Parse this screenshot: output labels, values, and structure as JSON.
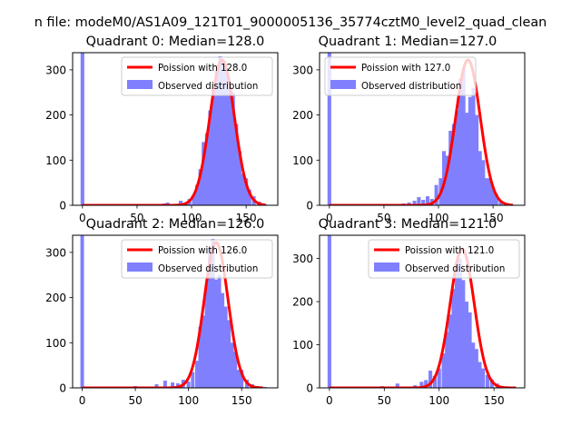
{
  "figure": {
    "suptitle": "n file: modeM0/AS1A09_121T01_9000005136_35774cztM0_level2_quad_clean"
  },
  "colors": {
    "observed": "#8080ff",
    "poisson": "#ff0000",
    "axis": "#000000",
    "background": "#ffffff"
  },
  "chart_data": [
    {
      "type": "bar",
      "title": "Quadrant 0: Median=128.0",
      "xlim": [
        -9,
        179
      ],
      "ylim": [
        0,
        338
      ],
      "xticks": [
        0,
        50,
        100,
        150
      ],
      "yticks": [
        0,
        100,
        200,
        300
      ],
      "median": 128,
      "legend": {
        "placement": "upper right",
        "entries": [
          "Poission with 128.0",
          "Observed distribution"
        ]
      },
      "series": [
        {
          "name": "Observed distribution",
          "kind": "histogram",
          "bin_width": 3.4,
          "bins": [
            [
              0,
              340
            ],
            [
              60,
              2
            ],
            [
              75,
              4
            ],
            [
              78,
              6
            ],
            [
              85,
              3
            ],
            [
              90,
              10
            ],
            [
              95,
              6
            ],
            [
              98,
              14
            ],
            [
              102,
              22
            ],
            [
              105,
              45
            ],
            [
              108,
              80
            ],
            [
              111,
              140
            ],
            [
              114,
              160
            ],
            [
              117,
              210
            ],
            [
              120,
              260
            ],
            [
              123,
              300
            ],
            [
              126,
              330
            ],
            [
              129,
              320
            ],
            [
              132,
              300
            ],
            [
              135,
              260
            ],
            [
              138,
              250
            ],
            [
              141,
              180
            ],
            [
              144,
              120
            ],
            [
              147,
              70
            ],
            [
              150,
              60
            ],
            [
              153,
              35
            ],
            [
              157,
              20
            ],
            [
              162,
              8
            ],
            [
              167,
              3
            ]
          ]
        },
        {
          "name": "Poission with 128.0",
          "kind": "curve",
          "mean": 128,
          "peak": 322,
          "x_range": [
            0,
            168
          ]
        }
      ]
    },
    {
      "type": "bar",
      "title": "Quadrant 1: Median=127.0",
      "xlim": [
        -9,
        179
      ],
      "ylim": [
        0,
        338
      ],
      "xticks": [
        0,
        50,
        100,
        150
      ],
      "yticks": [
        0,
        100,
        200,
        300
      ],
      "median": 127,
      "legend": {
        "placement": "upper left",
        "entries": [
          "Poission with 127.0",
          "Observed distribution"
        ]
      },
      "series": [
        {
          "name": "Observed distribution",
          "kind": "histogram",
          "bin_width": 3.4,
          "bins": [
            [
              0,
              340
            ],
            [
              68,
              4
            ],
            [
              73,
              6
            ],
            [
              78,
              10
            ],
            [
              82,
              18
            ],
            [
              86,
              12
            ],
            [
              90,
              20
            ],
            [
              94,
              14
            ],
            [
              98,
              45
            ],
            [
              102,
              60
            ],
            [
              105,
              120
            ],
            [
              108,
              110
            ],
            [
              111,
              165
            ],
            [
              114,
              180
            ],
            [
              117,
              210
            ],
            [
              120,
              280
            ],
            [
              123,
              300
            ],
            [
              126,
              205
            ],
            [
              129,
              240
            ],
            [
              132,
              260
            ],
            [
              135,
              200
            ],
            [
              138,
              120
            ],
            [
              141,
              100
            ],
            [
              144,
              60
            ],
            [
              147,
              60
            ],
            [
              150,
              40
            ],
            [
              153,
              25
            ],
            [
              157,
              10
            ],
            [
              162,
              5
            ],
            [
              167,
              2
            ]
          ]
        },
        {
          "name": "Poission with 127.0",
          "kind": "curve",
          "mean": 127,
          "peak": 322,
          "x_range": [
            0,
            168
          ]
        }
      ]
    },
    {
      "type": "bar",
      "title": "Quadrant 2: Median=126.0",
      "xlim": [
        -9,
        184
      ],
      "ylim": [
        0,
        338
      ],
      "xticks": [
        0,
        50,
        100,
        150
      ],
      "yticks": [
        0,
        100,
        200,
        300
      ],
      "median": 126,
      "legend": {
        "placement": "upper right",
        "entries": [
          "Poission with 126.0",
          "Observed distribution"
        ]
      },
      "series": [
        {
          "name": "Observed distribution",
          "kind": "histogram",
          "bin_width": 3.4,
          "bins": [
            [
              0,
              340
            ],
            [
              45,
              3
            ],
            [
              50,
              4
            ],
            [
              70,
              8
            ],
            [
              78,
              16
            ],
            [
              85,
              12
            ],
            [
              90,
              10
            ],
            [
              95,
              18
            ],
            [
              100,
              14
            ],
            [
              104,
              35
            ],
            [
              108,
              60
            ],
            [
              111,
              135
            ],
            [
              114,
              160
            ],
            [
              117,
              230
            ],
            [
              120,
              310
            ],
            [
              123,
              330
            ],
            [
              126,
              240
            ],
            [
              129,
              250
            ],
            [
              132,
              210
            ],
            [
              135,
              180
            ],
            [
              138,
              150
            ],
            [
              141,
              100
            ],
            [
              144,
              80
            ],
            [
              147,
              40
            ],
            [
              150,
              40
            ],
            [
              155,
              18
            ],
            [
              160,
              8
            ],
            [
              165,
              4
            ],
            [
              172,
              2
            ]
          ]
        },
        {
          "name": "Poission with 126.0",
          "kind": "curve",
          "mean": 126,
          "peak": 322,
          "x_range": [
            0,
            170
          ]
        }
      ]
    },
    {
      "type": "bar",
      "title": "Quadrant 3: Median=121.0",
      "xlim": [
        -9,
        178
      ],
      "ylim": [
        0,
        354
      ],
      "xticks": [
        0,
        50,
        100,
        150
      ],
      "yticks": [
        0,
        100,
        200,
        300
      ],
      "median": 121,
      "legend": {
        "placement": "upper right",
        "entries": [
          "Poission with 121.0",
          "Observed distribution"
        ]
      },
      "series": [
        {
          "name": "Observed distribution",
          "kind": "histogram",
          "bin_width": 3.4,
          "bins": [
            [
              0,
              355
            ],
            [
              30,
              3
            ],
            [
              48,
              4
            ],
            [
              62,
              10
            ],
            [
              78,
              6
            ],
            [
              84,
              14
            ],
            [
              88,
              18
            ],
            [
              92,
              40
            ],
            [
              96,
              28
            ],
            [
              100,
              45
            ],
            [
              104,
              80
            ],
            [
              107,
              130
            ],
            [
              110,
              170
            ],
            [
              113,
              230
            ],
            [
              116,
              290
            ],
            [
              119,
              300
            ],
            [
              122,
              250
            ],
            [
              125,
              200
            ],
            [
              128,
              175
            ],
            [
              131,
              105
            ],
            [
              134,
              90
            ],
            [
              137,
              60
            ],
            [
              140,
              45
            ],
            [
              144,
              30
            ],
            [
              148,
              20
            ],
            [
              153,
              10
            ],
            [
              158,
              4
            ],
            [
              165,
              2
            ]
          ]
        },
        {
          "name": "Poission with 121.0",
          "kind": "curve",
          "mean": 121,
          "peak": 322,
          "x_range": [
            0,
            170
          ]
        }
      ]
    }
  ]
}
